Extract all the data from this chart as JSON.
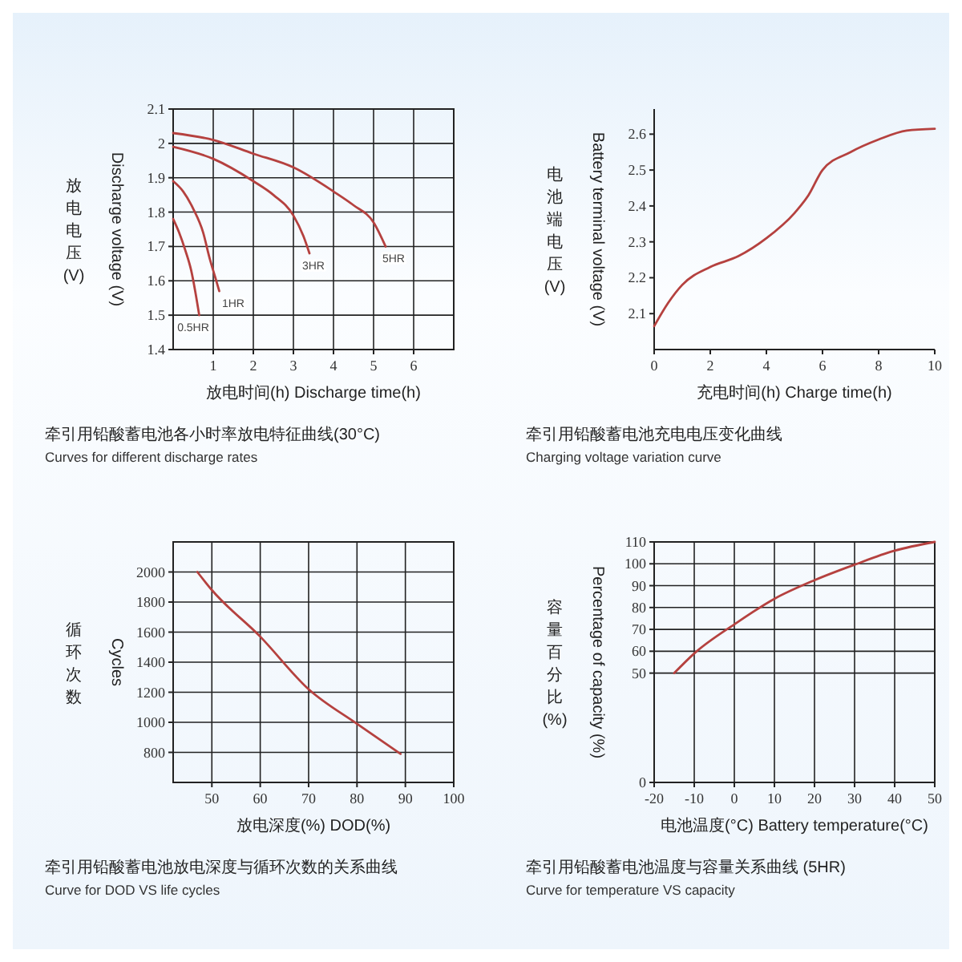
{
  "chart_data": [
    {
      "type": "line",
      "title": "牵引用铅酸蓄电池各小时率放电特征曲线(30°C)",
      "subtitle": "Curves for different discharge rates",
      "xlabel": "放电时间(h) Discharge time(h)",
      "ylabel": "Discharge voltage (V)",
      "annotations": [
        "放电电压(V)"
      ],
      "xlim": [
        0,
        7
      ],
      "xticks": [
        1,
        2,
        3,
        4,
        5,
        6
      ],
      "ylim": [
        1.4,
        2.1
      ],
      "yticks": [
        1.4,
        1.5,
        1.6,
        1.7,
        1.8,
        1.9,
        2.0,
        2.1
      ],
      "grid": true,
      "marker": "none",
      "series": [
        {
          "name": "0.5HR",
          "color": "#b5413f",
          "x": [
            0,
            0.15,
            0.3,
            0.45,
            0.55,
            0.65
          ],
          "values": [
            1.78,
            1.74,
            1.69,
            1.63,
            1.57,
            1.5
          ]
        },
        {
          "name": "1HR",
          "color": "#b5413f",
          "x": [
            0,
            0.25,
            0.5,
            0.75,
            0.9,
            1.05,
            1.15
          ],
          "values": [
            1.89,
            1.86,
            1.81,
            1.74,
            1.67,
            1.61,
            1.57
          ]
        },
        {
          "name": "3HR",
          "color": "#b5413f",
          "x": [
            0,
            1,
            2,
            2.5,
            3,
            3.25,
            3.4
          ],
          "values": [
            1.99,
            1.955,
            1.89,
            1.85,
            1.79,
            1.73,
            1.68
          ]
        },
        {
          "name": "5HR",
          "color": "#b5413f",
          "x": [
            0,
            1,
            2,
            3,
            4,
            4.5,
            5,
            5.3
          ],
          "values": [
            2.03,
            2.01,
            1.97,
            1.93,
            1.86,
            1.82,
            1.77,
            1.7
          ]
        }
      ]
    },
    {
      "type": "line",
      "title": "牵引用铅酸蓄电池充电电压变化曲线",
      "subtitle": "Charging voltage variation curve",
      "xlabel": "充电时间(h) Charge time(h)",
      "ylabel": "Battery terminal voltage (V)",
      "annotations": [
        "电池端电压(V)"
      ],
      "xlim": [
        0,
        10
      ],
      "xticks": [
        0,
        2,
        4,
        6,
        8,
        10
      ],
      "ylim": [
        2.0,
        2.67
      ],
      "yticks": [
        2.1,
        2.2,
        2.3,
        2.4,
        2.5,
        2.6
      ],
      "grid": false,
      "marker": "none",
      "series": [
        {
          "color": "#b5413f",
          "x": [
            0,
            0.5,
            1,
            2,
            3,
            4,
            5,
            5.5,
            6,
            7,
            8,
            9,
            10
          ],
          "values": [
            2.065,
            2.13,
            2.18,
            2.23,
            2.26,
            2.31,
            2.38,
            2.43,
            2.5,
            2.55,
            2.585,
            2.61,
            2.615
          ]
        }
      ]
    },
    {
      "type": "line",
      "title": "牵引用铅酸蓄电池放电深度与循环次数的关系曲线",
      "subtitle": "Curve for DOD VS life cycles",
      "xlabel": "放电深度(%) DOD(%)",
      "ylabel": "Cycles",
      "annotations": [
        "循环次数"
      ],
      "xlim": [
        42,
        100
      ],
      "xticks": [
        50,
        60,
        70,
        80,
        90,
        100
      ],
      "ylim": [
        600,
        2200
      ],
      "yticks": [
        800,
        1000,
        1200,
        1400,
        1600,
        1800,
        2000
      ],
      "grid": true,
      "marker": "none",
      "series": [
        {
          "color": "#b5413f",
          "x": [
            47,
            50,
            60,
            70,
            80,
            89
          ],
          "values": [
            2000,
            1880,
            1570,
            1220,
            990,
            790
          ]
        }
      ]
    },
    {
      "type": "line",
      "title": "牵引用铅酸蓄电池温度与容量关系曲线 (5HR)",
      "subtitle": "Curve for temperature VS capacity",
      "xlabel": "电池温度(°C) Battery temperature(°C)",
      "ylabel": "Percentage of capacity (%)",
      "annotations": [
        "容量百分比(%)"
      ],
      "xlim": [
        -20,
        50
      ],
      "xticks": [
        -20,
        -10,
        0,
        10,
        20,
        30,
        40,
        50
      ],
      "ylim": [
        0,
        110
      ],
      "yticks": [
        0,
        50,
        60,
        70,
        80,
        90,
        100,
        110
      ],
      "grid": true,
      "marker": "none",
      "series": [
        {
          "color": "#b5413f",
          "x": [
            -15,
            -10,
            0,
            10,
            20,
            30,
            40,
            50
          ],
          "values": [
            50,
            59,
            72.3,
            84,
            92.5,
            99.6,
            106,
            110
          ]
        }
      ]
    }
  ]
}
